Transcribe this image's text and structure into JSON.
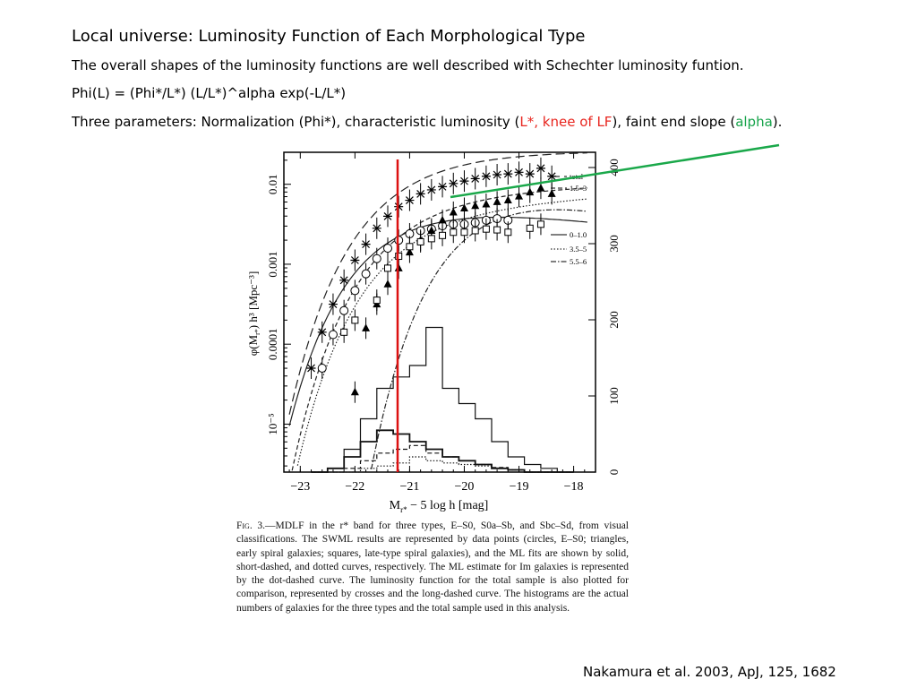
{
  "slide": {
    "title": "Local universe: Luminosity Function of Each Morphological Type",
    "line1": "The overall shapes of the luminosity functions are well described with Schechter luminosity funtion.",
    "line2": "Phi(L) = (Phi*/L*) (L/L*)^alpha exp(-L/L*)",
    "line3_a": " Three parameters: Normalization (Phi*), characteristic luminosity (",
    "line3_red": "L*, knee of LF",
    "line3_b": "), faint end slope (",
    "line3_green": "alpha",
    "line3_c": ").",
    "citation": "Nakamura et al. 2003, ApJ, 125, 1682"
  },
  "colors": {
    "red_highlight": "#e8261f",
    "green_highlight": "#16a34a",
    "annotation_line_red": "#dd1111",
    "annotation_line_green": "#1aa84a"
  },
  "figure": {
    "x_label": "M",
    "x_label_sub": "r*",
    "x_label_rest": " − 5 log h  [mag]",
    "y_label_left": "φ(M",
    "y_label_left_sub": "r*",
    "y_label_left_rest": ") h³ [Mpc⁻³]",
    "x_ticks": [
      "−23",
      "−22",
      "−21",
      "−20",
      "−19",
      "−18"
    ],
    "y_ticks_left": [
      "10⁻⁵",
      "0.0001",
      "0.001",
      "0.01"
    ],
    "y_ticks_right": [
      "0",
      "100",
      "200",
      "300",
      "400"
    ],
    "legend": [
      "total",
      "1.5–3",
      "0–1.0",
      "3.5–5",
      "5.5–6"
    ]
  },
  "caption": {
    "fig_label": "Fig. 3.",
    "text": "—MDLF in the r* band for three types, E–S0, S0a–Sb, and Sbc–Sd, from visual classifications. The SWML results are represented by data points (circles, E–S0; triangles, early spiral galaxies; squares, late-type spiral galaxies), and the ML fits are shown by solid, short-dashed, and dotted curves, respectively. The ML estimate for Im galaxies is represented by the dot-dashed curve. The luminosity function for the total sample is also plotted for comparison, represented by crosses and the long-dashed curve. The histograms are the actual numbers of galaxies for the three types and the total sample used in this analysis."
  },
  "chart_data": {
    "type": "scatter",
    "xlabel": "M_r* − 5 log h [mag]",
    "ylabel": "φ(M_r*) h³ [Mpc⁻³]",
    "xlim": [
      -23.3,
      -17.6
    ],
    "ylim_log10": [
      -5.6,
      -1.6
    ],
    "y2lim": [
      0,
      420
    ],
    "series": [
      {
        "name": "total",
        "marker": "cross",
        "x": [
          -22.8,
          -22.6,
          -22.4,
          -22.2,
          -22.0,
          -21.8,
          -21.6,
          -21.4,
          -21.2,
          -21.0,
          -20.8,
          -20.6,
          -20.4,
          -20.2,
          -20.0,
          -19.8,
          -19.6,
          -19.4,
          -19.2,
          -19.0,
          -18.8,
          -18.6,
          -18.4
        ],
        "y": [
          -4.3,
          -3.85,
          -3.5,
          -3.2,
          -2.95,
          -2.75,
          -2.55,
          -2.4,
          -2.28,
          -2.2,
          -2.12,
          -2.07,
          -2.03,
          -1.99,
          -1.96,
          -1.93,
          -1.9,
          -1.88,
          -1.87,
          -1.85,
          -1.87,
          -1.8,
          -1.9
        ]
      },
      {
        "name": "0–1.0",
        "marker": "circle",
        "x": [
          -22.6,
          -22.4,
          -22.2,
          -22.0,
          -21.8,
          -21.6,
          -21.4,
          -21.2,
          -21.0,
          -20.8,
          -20.6,
          -20.4,
          -20.2,
          -20.0,
          -19.8,
          -19.6,
          -19.4,
          -19.2
        ],
        "y": [
          -4.3,
          -3.88,
          -3.58,
          -3.33,
          -3.12,
          -2.93,
          -2.8,
          -2.7,
          -2.62,
          -2.58,
          -2.56,
          -2.52,
          -2.5,
          -2.5,
          -2.48,
          -2.45,
          -2.43,
          -2.45
        ]
      },
      {
        "name": "1.5–3",
        "marker": "triangle",
        "x": [
          -22.0,
          -21.8,
          -21.6,
          -21.4,
          -21.2,
          -21.0,
          -20.8,
          -20.6,
          -20.4,
          -20.2,
          -20.0,
          -19.8,
          -19.6,
          -19.4,
          -19.2,
          -19.0,
          -18.8,
          -18.6,
          -18.4
        ],
        "y": [
          -4.6,
          -3.8,
          -3.5,
          -3.25,
          -3.05,
          -2.85,
          -2.7,
          -2.58,
          -2.45,
          -2.35,
          -2.3,
          -2.27,
          -2.25,
          -2.22,
          -2.2,
          -2.15,
          -2.1,
          -2.05,
          -2.12
        ]
      },
      {
        "name": "3.5–5",
        "marker": "square",
        "x": [
          -22.2,
          -22.0,
          -21.6,
          -21.4,
          -21.2,
          -21.0,
          -20.8,
          -20.6,
          -20.4,
          -20.2,
          -20.0,
          -19.8,
          -19.6,
          -19.4,
          -19.2,
          -18.8,
          -18.6
        ],
        "y": [
          -3.85,
          -3.7,
          -3.45,
          -3.05,
          -2.9,
          -2.78,
          -2.72,
          -2.68,
          -2.64,
          -2.6,
          -2.6,
          -2.58,
          -2.56,
          -2.57,
          -2.6,
          -2.55,
          -2.5
        ]
      }
    ],
    "vertical_line_x": -21.15,
    "legend": [
      "total",
      "1.5–3",
      "0–1.0",
      "3.5–5",
      "5.5–6"
    ]
  }
}
